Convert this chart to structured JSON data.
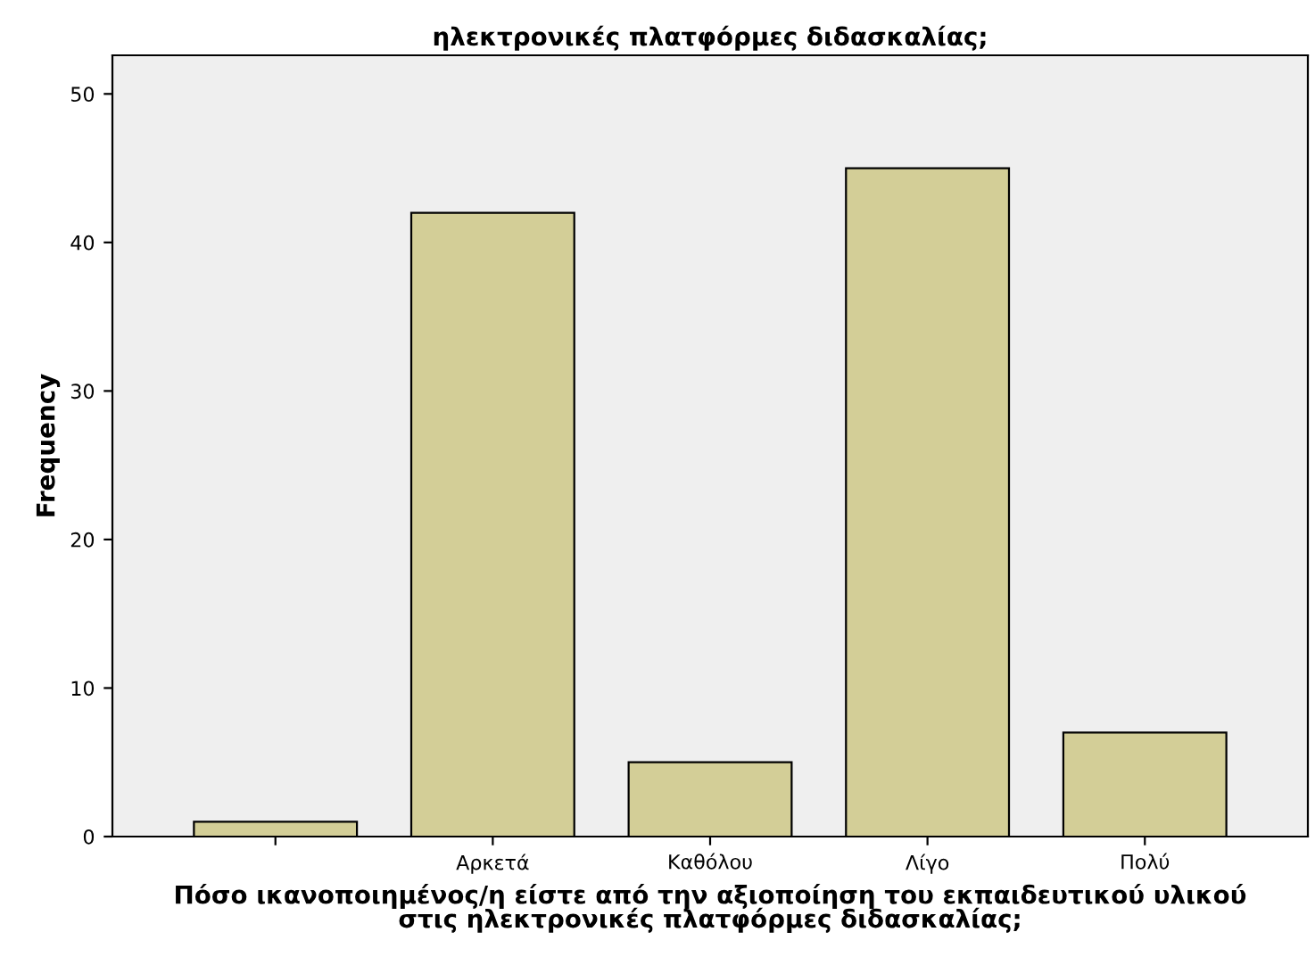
{
  "chart_data": {
    "type": "bar",
    "title": "ηλεκτρονικές πλατφόρμες διδασκαλίας;",
    "xlabel": "Πόσο ικανοποιημένος/η είστε από την αξιοποίηση του εκπαιδευτικού υλικού\nστις ηλεκτρονικές πλατφόρμες διδασκαλίας;",
    "ylabel": "Frequency",
    "categories": [
      null,
      "Αρκετά",
      "Καθόλου",
      "Λίγο",
      "Πολύ"
    ],
    "values": [
      1,
      42,
      5,
      45,
      7
    ],
    "color": "#d3ce97",
    "ylim": [
      0,
      52.6
    ],
    "yticks": [
      0,
      10,
      20,
      30,
      40,
      50
    ],
    "grid": false
  }
}
